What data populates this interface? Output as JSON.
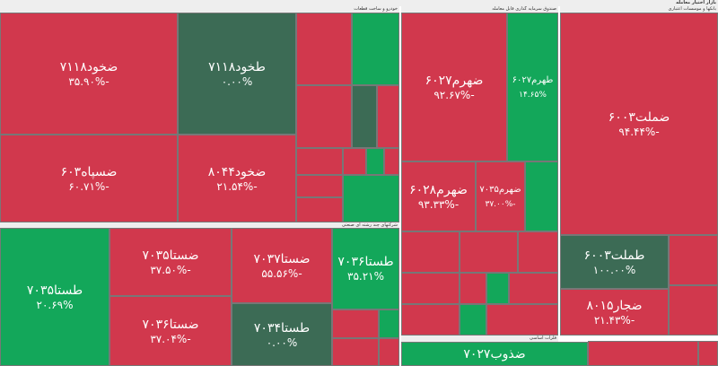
{
  "header": {
    "title": "بازار اختیار معامله"
  },
  "sections": [
    {
      "title": "خودرو و ساخت قطعات"
    },
    {
      "title": "صندوق سرمایه گذاری قابل معامله"
    },
    {
      "title": "بانکها و موسسات اعتباری"
    },
    {
      "title": "شرکتهای چند رشته ای صنعتی"
    },
    {
      "title": "فلزات اساسی"
    }
  ],
  "tiles": [
    {
      "label": "ضخود۷۱۱۸",
      "value": "-۳۵.۹۰%"
    },
    {
      "label": "طخود۷۱۱۸",
      "value": "۰.۰۰%"
    },
    {
      "label": "ضسپاه۶۰۳",
      "value": "-۶۰.۷۱%"
    },
    {
      "label": "ضخود۸۰۴۴",
      "value": "-۲۱.۵۴%"
    },
    {
      "label": "ضهرم۶۰۲۷",
      "value": "-۹۲.۶۷%"
    },
    {
      "label": "طهرم۶۰۲۷",
      "value": "۱۴.۶۵%"
    },
    {
      "label": "ضهرم۶۰۲۸",
      "value": "-۹۳.۳۳%"
    },
    {
      "label": "ضهرم۷۰۳۵",
      "value": "-۳۷.۰۰%"
    },
    {
      "label": "ضملت۶۰۰۳",
      "value": "-۹۴.۴۴%"
    },
    {
      "label": "طملت۶۰۰۳",
      "value": "۱۰۰.۰۰%"
    },
    {
      "label": "ضجار۸۰۱۵",
      "value": "-۲۱.۴۳%"
    },
    {
      "label": "طستا۷۰۳۵",
      "value": "۲۰.۶۹%"
    },
    {
      "label": "ضستا۷۰۳۵",
      "value": "-۳۷.۵۰%"
    },
    {
      "label": "ضستا۷۰۳۷",
      "value": "-۵۵.۵۶%"
    },
    {
      "label": "طستا۷۰۳۶",
      "value": "۳۵.۲۱%"
    },
    {
      "label": "ضستا۷۰۳۶",
      "value": "-۳۷.۰۴%"
    },
    {
      "label": "طستا۷۰۳۴",
      "value": "۰.۰۰%"
    },
    {
      "label": "ضذوب۷۰۲۷"
    }
  ]
}
